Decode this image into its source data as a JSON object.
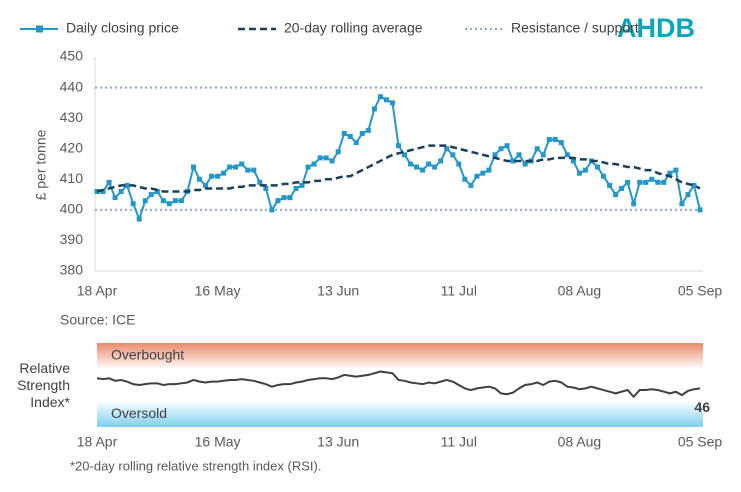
{
  "chart_data": [
    {
      "type": "line",
      "logo": "AHDB",
      "ylabel": "£ per tonne",
      "source": "Source: ICE",
      "categories": [
        "18 Apr",
        null,
        null,
        null,
        null,
        null,
        null,
        null,
        null,
        null,
        null,
        null,
        null,
        null,
        null,
        null,
        null,
        null,
        null,
        null,
        "16 May",
        null,
        null,
        null,
        null,
        null,
        null,
        null,
        null,
        null,
        null,
        null,
        null,
        null,
        null,
        null,
        null,
        null,
        null,
        null,
        "13 Jun",
        null,
        null,
        null,
        null,
        null,
        null,
        null,
        null,
        null,
        null,
        null,
        null,
        null,
        null,
        null,
        null,
        null,
        null,
        null,
        "11 Jul",
        null,
        null,
        null,
        null,
        null,
        null,
        null,
        null,
        null,
        null,
        null,
        null,
        null,
        null,
        null,
        null,
        null,
        null,
        null,
        "08 Aug",
        null,
        null,
        null,
        null,
        null,
        null,
        null,
        null,
        null,
        null,
        null,
        null,
        null,
        null,
        null,
        null,
        null,
        null,
        null,
        "05 Sep"
      ],
      "series": [
        {
          "name": "Daily closing price",
          "color": "#2596c8",
          "markers": true,
          "values": [
            406,
            406,
            409,
            404,
            406,
            408,
            402,
            397,
            403,
            405,
            406,
            403,
            402,
            403,
            403,
            406,
            414,
            410,
            408,
            411,
            411,
            412,
            414,
            414,
            415,
            413,
            413,
            409,
            407,
            400,
            403,
            404,
            404,
            407,
            408,
            414,
            415,
            417,
            417,
            416,
            419,
            425,
            424,
            422,
            425,
            426,
            433,
            437,
            436,
            435,
            421,
            418,
            415,
            414,
            413,
            415,
            414,
            416,
            420,
            418,
            415,
            410,
            408,
            411,
            412,
            413,
            418,
            420,
            421,
            416,
            418,
            415,
            416,
            420,
            418,
            423,
            423,
            422,
            418,
            416,
            412,
            413,
            416,
            414,
            411,
            408,
            405,
            407,
            409,
            402,
            409,
            409,
            410,
            409,
            409,
            412,
            413,
            402,
            405,
            408,
            400
          ]
        },
        {
          "name": "20-day rolling average",
          "color": "#1b3f5a",
          "dashed": true,
          "values": [
            406,
            406.5,
            407,
            407.5,
            408,
            408,
            408,
            407.5,
            407,
            407,
            406.5,
            406,
            406,
            406,
            406,
            406,
            406.5,
            406.5,
            407,
            407,
            407,
            407,
            407,
            407.5,
            407.5,
            408,
            408,
            408,
            408,
            408,
            408,
            408.5,
            408.5,
            409,
            409,
            409,
            409.5,
            409.5,
            410,
            410,
            410.5,
            411,
            411,
            412,
            413,
            414,
            415,
            416,
            417,
            418,
            418.5,
            419,
            419.5,
            420,
            420.5,
            421,
            421,
            421,
            421,
            420.5,
            420,
            419.5,
            419,
            418.5,
            418,
            417.5,
            417,
            416.5,
            416,
            416,
            416,
            416,
            416,
            416,
            416.5,
            416.5,
            417,
            417,
            417,
            417,
            416.5,
            416.5,
            416,
            416,
            415.5,
            415,
            415,
            414.5,
            414,
            414,
            413.5,
            413,
            413,
            412,
            411.5,
            411,
            410,
            409,
            408.5,
            408,
            407
          ]
        }
      ],
      "hlines": {
        "name": "Resistance / support",
        "color": "#8da9c4",
        "values": [
          440,
          400
        ]
      },
      "ylim": [
        380,
        450
      ],
      "yticks": [
        380,
        390,
        400,
        410,
        420,
        430,
        440,
        450
      ],
      "grid": false
    },
    {
      "type": "line",
      "ylabel": "Relative Strength Index*",
      "footnote": "*20-day rolling relative strength index (RSI).",
      "categories": [
        "18 Apr",
        null,
        null,
        null,
        null,
        null,
        null,
        null,
        null,
        null,
        null,
        null,
        null,
        null,
        null,
        null,
        null,
        null,
        null,
        null,
        "16 May",
        null,
        null,
        null,
        null,
        null,
        null,
        null,
        null,
        null,
        null,
        null,
        null,
        null,
        null,
        null,
        null,
        null,
        null,
        null,
        "13 Jun",
        null,
        null,
        null,
        null,
        null,
        null,
        null,
        null,
        null,
        null,
        null,
        null,
        null,
        null,
        null,
        null,
        null,
        null,
        null,
        "11 Jul",
        null,
        null,
        null,
        null,
        null,
        null,
        null,
        null,
        null,
        null,
        null,
        null,
        null,
        null,
        null,
        null,
        null,
        null,
        null,
        "08 Aug",
        null,
        null,
        null,
        null,
        null,
        null,
        null,
        null,
        null,
        null,
        null,
        null,
        null,
        null,
        null,
        null,
        null,
        null,
        null,
        "05 Sep"
      ],
      "zones": [
        {
          "label": "Overbought",
          "from": 70,
          "to": 100,
          "color": "#e8896b"
        },
        {
          "label": "Oversold",
          "from": 0,
          "to": 30,
          "color": "#7fcfef"
        }
      ],
      "series": [
        {
          "color": "#404040",
          "end_label": true,
          "values": [
            58,
            57,
            58,
            55,
            56,
            54,
            51,
            50,
            51,
            52,
            52,
            50,
            51,
            51,
            52,
            53,
            56,
            54,
            53,
            54,
            54,
            55,
            56,
            56,
            57,
            56,
            55,
            53,
            51,
            48,
            50,
            51,
            51,
            53,
            54,
            56,
            57,
            58,
            58,
            57,
            59,
            62,
            61,
            60,
            61,
            62,
            64,
            66,
            65,
            64,
            56,
            55,
            53,
            52,
            51,
            53,
            52,
            54,
            56,
            54,
            50,
            46,
            44,
            46,
            47,
            48,
            46,
            40,
            39,
            41,
            46,
            50,
            51,
            53,
            50,
            54,
            55,
            53,
            48,
            47,
            45,
            46,
            48,
            46,
            44,
            42,
            40,
            42,
            44,
            36,
            44,
            44,
            45,
            44,
            42,
            40,
            42,
            38,
            43,
            45,
            46
          ]
        }
      ],
      "ylim": [
        0,
        100
      ]
    }
  ]
}
